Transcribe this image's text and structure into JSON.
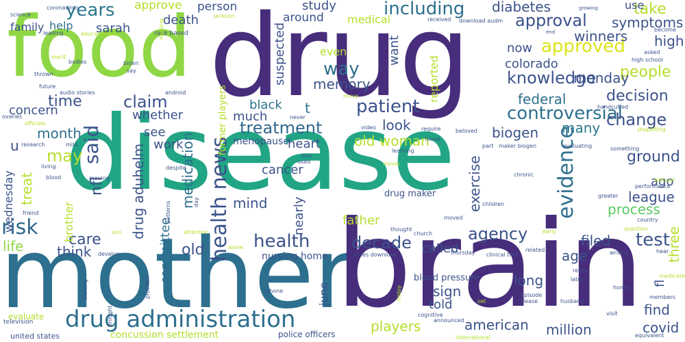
{
  "words": [
    {
      "text": "drug",
      "color": "#472d7b"
    },
    {
      "text": "food",
      "color": "#8fd744"
    },
    {
      "text": "disease",
      "color": "#21a585"
    },
    {
      "text": "mother",
      "color": "#2d6f8e"
    },
    {
      "text": "brain",
      "color": "#472d7b"
    },
    {
      "text": "drug administration",
      "color": "#2d6f8e"
    },
    {
      "text": "patient",
      "color": "#3b528b"
    },
    {
      "text": "treatment",
      "color": "#31688e"
    },
    {
      "text": "controversial",
      "color": "#2d6f8e"
    },
    {
      "text": "years",
      "color": "#2a788e"
    },
    {
      "text": "including",
      "color": "#2d6f8e"
    },
    {
      "text": "approval",
      "color": "#3b528b"
    },
    {
      "text": "approved",
      "color": "#dde318"
    },
    {
      "text": "knowledge",
      "color": "#3b528b"
    },
    {
      "text": "people",
      "color": "#b5de2b"
    },
    {
      "text": "decision",
      "color": "#3b528b"
    },
    {
      "text": "agency",
      "color": "#3b528b"
    },
    {
      "text": "health news",
      "color": "#3b528b"
    },
    {
      "text": "health",
      "color": "#3b528b"
    },
    {
      "text": "decade",
      "color": "#3b528b"
    },
    {
      "text": "test",
      "color": "#3b528b"
    },
    {
      "text": "evidence",
      "color": "#2d6f8e"
    },
    {
      "text": "risk",
      "color": "#31688e"
    },
    {
      "text": "claim",
      "color": "#3b528b"
    },
    {
      "text": "said",
      "color": "#3b528b"
    },
    {
      "text": "time",
      "color": "#3b528b"
    },
    {
      "text": "month",
      "color": "#2d6f8e"
    },
    {
      "text": "may",
      "color": "#b5de2b"
    },
    {
      "text": "care",
      "color": "#3b528b"
    },
    {
      "text": "life",
      "color": "#8fd744"
    },
    {
      "text": "think",
      "color": "#3b528b"
    },
    {
      "text": "old",
      "color": "#3b528b"
    },
    {
      "text": "way",
      "color": "#2d6f8e"
    },
    {
      "text": "memory",
      "color": "#3b528b"
    },
    {
      "text": "old woman",
      "color": "#b5de2b"
    },
    {
      "text": "change",
      "color": "#3b528b"
    },
    {
      "text": "league",
      "color": "#3b528b"
    },
    {
      "text": "process",
      "color": "#5ec962"
    },
    {
      "text": "ground",
      "color": "#3b528b"
    },
    {
      "text": "high",
      "color": "#3b528b"
    },
    {
      "text": "symptoms",
      "color": "#3b528b"
    },
    {
      "text": "take",
      "color": "#b5de2b"
    },
    {
      "text": "diabetes",
      "color": "#3b528b"
    },
    {
      "text": "winners",
      "color": "#3b528b"
    },
    {
      "text": "now",
      "color": "#3b528b"
    },
    {
      "text": "colorado",
      "color": "#3b528b"
    },
    {
      "text": "monday",
      "color": "#3b528b"
    },
    {
      "text": "federal",
      "color": "#2d6f8e"
    },
    {
      "text": "many",
      "color": "#2a788e"
    },
    {
      "text": "biogen",
      "color": "#3b528b"
    },
    {
      "text": "exercise",
      "color": "#3b528b"
    },
    {
      "text": "father",
      "color": "#b5de2b"
    },
    {
      "text": "mind",
      "color": "#3b528b"
    },
    {
      "text": "cancer",
      "color": "#3b528b"
    },
    {
      "text": "heart",
      "color": "#3b528b"
    },
    {
      "text": "look",
      "color": "#3b528b"
    },
    {
      "text": "black",
      "color": "#2d6f8e"
    },
    {
      "text": "much",
      "color": "#3b528b"
    },
    {
      "text": "whether",
      "color": "#3b528b"
    },
    {
      "text": "see",
      "color": "#3b528b"
    },
    {
      "text": "work",
      "color": "#3b528b"
    },
    {
      "text": "medication",
      "color": "#2d6f8e"
    },
    {
      "text": "drug aduhelm",
      "color": "#3b528b"
    },
    {
      "text": "committee",
      "color": "#2d6f8e"
    },
    {
      "text": "nfl",
      "color": "#3b528b"
    },
    {
      "text": "treat",
      "color": "#b5de2b"
    },
    {
      "text": "wednesday",
      "color": "#3b528b"
    },
    {
      "text": "concern",
      "color": "#3b528b"
    },
    {
      "text": "family",
      "color": "#3b528b"
    },
    {
      "text": "help",
      "color": "#2d6f8e"
    },
    {
      "text": "sarah",
      "color": "#3b528b"
    },
    {
      "text": "death",
      "color": "#3b528b"
    },
    {
      "text": "person",
      "color": "#3b528b"
    },
    {
      "text": "approve",
      "color": "#b5de2b"
    },
    {
      "text": "study",
      "color": "#3b528b"
    },
    {
      "text": "around",
      "color": "#3b528b"
    },
    {
      "text": "medical",
      "color": "#b5de2b"
    },
    {
      "text": "use",
      "color": "#3b528b"
    },
    {
      "text": "want",
      "color": "#3b528b"
    },
    {
      "text": "even",
      "color": "#b5de2b"
    },
    {
      "text": "reported",
      "color": "#b5de2b"
    },
    {
      "text": "suspected",
      "color": "#3b528b"
    },
    {
      "text": "age",
      "color": "#3b528b"
    },
    {
      "text": "filed",
      "color": "#3b528b"
    },
    {
      "text": "three",
      "color": "#b5de2b"
    },
    {
      "text": "long",
      "color": "#3b528b"
    },
    {
      "text": "find",
      "color": "#3b528b"
    },
    {
      "text": "covid",
      "color": "#3b528b"
    },
    {
      "text": "million",
      "color": "#3b528b"
    },
    {
      "text": "american",
      "color": "#3b528b"
    },
    {
      "text": "told",
      "color": "#3b528b"
    },
    {
      "text": "sign",
      "color": "#3b528b"
    },
    {
      "text": "called",
      "color": "#3b528b"
    },
    {
      "text": "players",
      "color": "#b5de2b"
    },
    {
      "text": "concussion settlement",
      "color": "#b5de2b"
    },
    {
      "text": "nearly",
      "color": "#3b528b"
    },
    {
      "text": "brother",
      "color": "#b5de2b"
    },
    {
      "text": "nursing home",
      "color": "#3b528b"
    },
    {
      "text": "former players",
      "color": "#b5de2b"
    },
    {
      "text": "menopause",
      "color": "#3b528b"
    },
    {
      "text": "drug maker",
      "color": "#3b528b"
    },
    {
      "text": "june",
      "color": "#3b528b"
    },
    {
      "text": "u",
      "color": "#3b528b"
    },
    {
      "text": "t",
      "color": "#2d6f8e"
    },
    {
      "text": "ago",
      "color": "#3b528b"
    },
    {
      "text": "fl",
      "color": "#3b528b"
    },
    {
      "text": "blood pressure",
      "color": "#3b528b"
    },
    {
      "text": "police officers",
      "color": "#3b528b"
    },
    {
      "text": "united states",
      "color": "#3b528b"
    },
    {
      "text": "evaluate",
      "color": "#b5de2b"
    },
    {
      "text": "television",
      "color": "#3b528b"
    },
    {
      "text": "science",
      "color": "#3b528b"
    },
    {
      "text": "coronavirus",
      "color": "#3b528b"
    },
    {
      "text": "leading",
      "color": "#3b528b"
    },
    {
      "text": "aducanumab",
      "color": "#b5de2b"
    },
    {
      "text": "jackson",
      "color": "#b5de2b"
    },
    {
      "text": "race based",
      "color": "#3b528b"
    },
    {
      "text": "received",
      "color": "#3b528b"
    },
    {
      "text": "download audm",
      "color": "#3b528b"
    },
    {
      "text": "growing",
      "color": "#3b528b"
    },
    {
      "text": "become",
      "color": "#3b528b"
    },
    {
      "text": "asked",
      "color": "#3b528b"
    },
    {
      "text": "high school",
      "color": "#3b528b"
    },
    {
      "text": "end",
      "color": "#3b528b"
    },
    {
      "text": "merit",
      "color": "#b5de2b"
    },
    {
      "text": "bodies",
      "color": "#3b528b"
    },
    {
      "text": "biden",
      "color": "#3b528b"
    },
    {
      "text": "say",
      "color": "#3b528b"
    },
    {
      "text": "missing",
      "color": "#b5de2b"
    },
    {
      "text": "thrown",
      "color": "#3b528b"
    },
    {
      "text": "future",
      "color": "#3b528b"
    },
    {
      "text": "audio stories",
      "color": "#3b528b"
    },
    {
      "text": "android",
      "color": "#3b528b"
    },
    {
      "text": "ovaries",
      "color": "#3b528b"
    },
    {
      "text": "officials",
      "color": "#b5de2b"
    },
    {
      "text": "research",
      "color": "#3b528b"
    },
    {
      "text": "mild",
      "color": "#3b528b"
    },
    {
      "text": "living",
      "color": "#3b528b"
    },
    {
      "text": "blood",
      "color": "#3b528b"
    },
    {
      "text": "moving",
      "color": "#3b528b"
    },
    {
      "text": "despite",
      "color": "#3b528b"
    },
    {
      "text": "never",
      "color": "#3b528b"
    },
    {
      "text": "video",
      "color": "#3b528b"
    },
    {
      "text": "require",
      "color": "#3b528b"
    },
    {
      "text": "beloved",
      "color": "#3b528b"
    },
    {
      "text": "found",
      "color": "#3b528b"
    },
    {
      "text": "part",
      "color": "#3b528b"
    },
    {
      "text": "maker biogen",
      "color": "#3b528b"
    },
    {
      "text": "evaluating",
      "color": "#3b528b"
    },
    {
      "text": "something",
      "color": "#3b528b"
    },
    {
      "text": "shoplifting",
      "color": "#b5de2b"
    },
    {
      "text": "handcuffed",
      "color": "#3b528b"
    },
    {
      "text": "move",
      "color": "#b5de2b"
    },
    {
      "text": "learning",
      "color": "#3b528b"
    },
    {
      "text": "loss",
      "color": "#3b528b"
    },
    {
      "text": "used",
      "color": "#3b528b"
    },
    {
      "text": "movie",
      "color": "#b5de2b"
    },
    {
      "text": "chronic",
      "color": "#3b528b"
    },
    {
      "text": "without",
      "color": "#b5de2b"
    },
    {
      "text": "performance",
      "color": "#3b528b"
    },
    {
      "text": "greater",
      "color": "#3b528b"
    },
    {
      "text": "country",
      "color": "#3b528b"
    },
    {
      "text": "question",
      "color": "#b5de2b"
    },
    {
      "text": "children",
      "color": "#3b528b"
    },
    {
      "text": "moved",
      "color": "#3b528b"
    },
    {
      "text": "thought",
      "color": "#3b528b"
    },
    {
      "text": "church",
      "color": "#3b528b"
    },
    {
      "text": "early",
      "color": "#b5de2b"
    },
    {
      "text": "related",
      "color": "#3b528b"
    },
    {
      "text": "thursday",
      "color": "#3b528b"
    },
    {
      "text": "clinical trial",
      "color": "#3b528b"
    },
    {
      "text": "times download",
      "color": "#3b528b"
    },
    {
      "text": "writing",
      "color": "#3b528b"
    },
    {
      "text": "hear",
      "color": "#3b528b"
    },
    {
      "text": "really",
      "color": "#3b528b"
    },
    {
      "text": "later",
      "color": "#3b528b"
    },
    {
      "text": "medicare",
      "color": "#b5de2b"
    },
    {
      "text": "home",
      "color": "#3b528b"
    },
    {
      "text": "members",
      "color": "#3b528b"
    },
    {
      "text": "visit",
      "color": "#3b528b"
    },
    {
      "text": "equivalent",
      "color": "#3b528b"
    },
    {
      "text": "husband",
      "color": "#3b528b"
    },
    {
      "text": "episode",
      "color": "#3b528b"
    },
    {
      "text": "release",
      "color": "#3b528b"
    },
    {
      "text": "set",
      "color": "#b5de2b"
    },
    {
      "text": "cognitive",
      "color": "#3b528b"
    },
    {
      "text": "announced",
      "color": "#3b528b"
    },
    {
      "text": "international",
      "color": "#b5de2b"
    },
    {
      "text": "friday",
      "color": "#b5de2b"
    },
    {
      "text": "iphone",
      "color": "#3b528b"
    },
    {
      "text": "problem",
      "color": "#3b528b"
    },
    {
      "text": "walking",
      "color": "#3b528b"
    },
    {
      "text": "brought",
      "color": "#3b528b"
    },
    {
      "text": "develop",
      "color": "#3b528b"
    },
    {
      "text": "alone",
      "color": "#b5de2b"
    },
    {
      "text": "attention",
      "color": "#b5de2b"
    },
    {
      "text": "son",
      "color": "#b5de2b"
    },
    {
      "text": "friend",
      "color": "#3b528b"
    },
    {
      "text": "day",
      "color": "#3b528b"
    },
    {
      "text": "patterns",
      "color": "#3b528b"
    }
  ]
}
